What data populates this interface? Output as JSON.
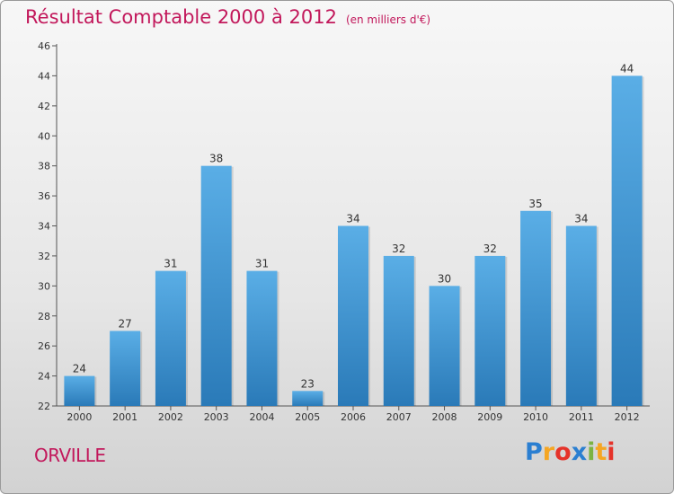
{
  "header": {
    "title": "Résultat Comptable 2000 à 2012",
    "unit": "(en milliers d'€)"
  },
  "footer": {
    "city": "ORVILLE"
  },
  "logo": {
    "text": "Proxiti",
    "letters": [
      "P",
      "r",
      "o",
      "x",
      "i",
      "t",
      "i"
    ],
    "colors": [
      "#2b7fd1",
      "#f5a623",
      "#e5332a",
      "#2b7fd1",
      "#7cb342",
      "#f5a623",
      "#e5332a"
    ]
  },
  "colors": {
    "bar_light": "#5aaee6",
    "bar_dark": "#2a7ab8",
    "accent": "#c2185b"
  },
  "chart_data": {
    "type": "bar",
    "title": "Résultat Comptable 2000 à 2012",
    "subtitle": "(en milliers d'€)",
    "categories": [
      "2000",
      "2001",
      "2002",
      "2003",
      "2004",
      "2005",
      "2006",
      "2007",
      "2008",
      "2009",
      "2010",
      "2011",
      "2012"
    ],
    "values": [
      24,
      27,
      31,
      38,
      31,
      23,
      34,
      32,
      30,
      32,
      35,
      34,
      44
    ],
    "ylim": [
      22,
      46
    ],
    "yticks": [
      22,
      24,
      26,
      28,
      30,
      32,
      34,
      36,
      38,
      40,
      42,
      44,
      46
    ],
    "xlabel": "",
    "ylabel": "",
    "grid": false
  }
}
